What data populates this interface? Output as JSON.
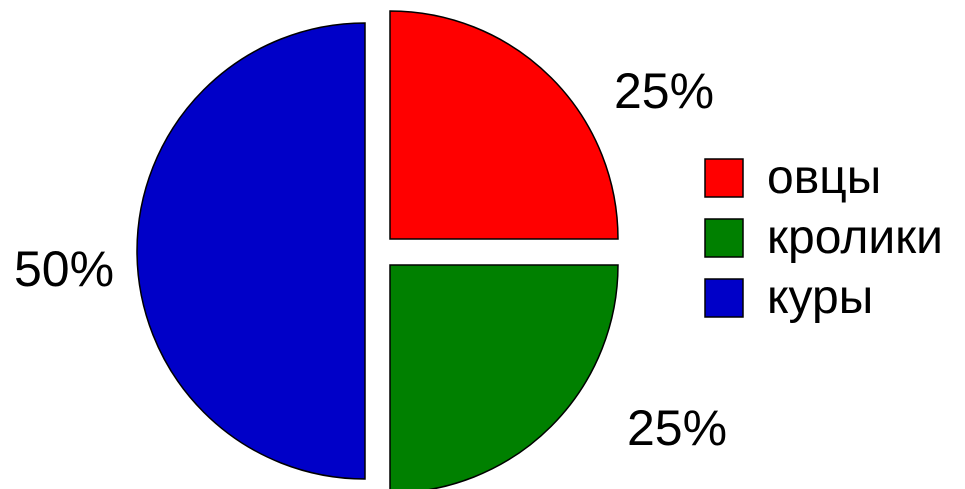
{
  "chart_data": {
    "type": "pie",
    "title": "",
    "categories": [
      "овцы",
      "кролики",
      "куры"
    ],
    "values": [
      25,
      25,
      50
    ],
    "labels": [
      "25%",
      "25%",
      "50%"
    ],
    "colors": [
      "#ff0000",
      "#008000",
      "#0000c8"
    ],
    "exploded": true,
    "legend": {
      "position": "right",
      "entries": [
        "овцы",
        "кролики",
        "куры"
      ]
    }
  }
}
